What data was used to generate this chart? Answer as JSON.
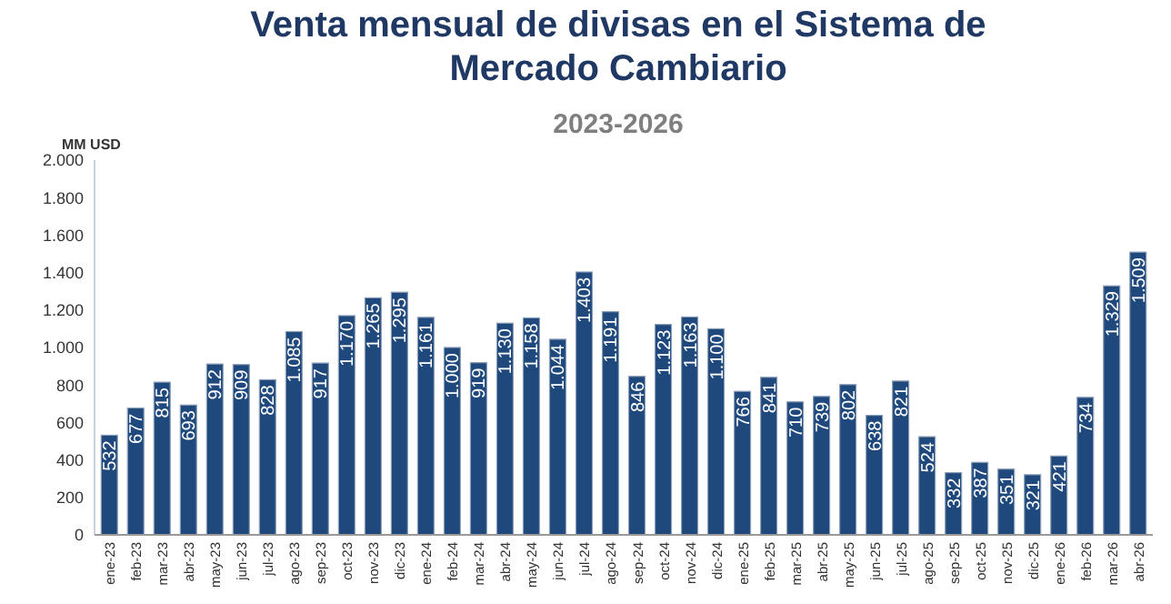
{
  "chart_data": {
    "type": "bar",
    "title": "Venta mensual de divisas en el Sistema de Mercado Cambiario",
    "subtitle": "2023-2026",
    "ylabel": "MM USD",
    "categories": [
      "ene-23",
      "feb-23",
      "mar-23",
      "abr-23",
      "may-23",
      "jun-23",
      "jul-23",
      "ago-23",
      "sep-23",
      "oct-23",
      "nov-23",
      "dic-23",
      "ene-24",
      "feb-24",
      "mar-24",
      "abr-24",
      "may-24",
      "jun-24",
      "jul-24",
      "ago-24",
      "sep-24",
      "oct-24",
      "nov-24",
      "dic-24",
      "ene-25",
      "feb-25",
      "mar-25",
      "abr-25",
      "may-25",
      "jun-25",
      "jul-25",
      "ago-25",
      "sep-25",
      "oct-25",
      "nov-25",
      "dic-25",
      "ene-26",
      "feb-26",
      "mar-26",
      "abr-26"
    ],
    "values": [
      532,
      677,
      815,
      693,
      912,
      909,
      828,
      1085,
      917,
      1170,
      1265,
      1295,
      1161,
      1000,
      919,
      1130,
      1158,
      1044,
      1403,
      1191,
      846,
      1123,
      1163,
      1100,
      766,
      841,
      710,
      739,
      802,
      638,
      821,
      524,
      332,
      387,
      351,
      321,
      421,
      734,
      1329,
      1509
    ],
    "value_labels": [
      "532",
      "677",
      "815",
      "693",
      "912",
      "909",
      "828",
      "1.085",
      "917",
      "1.170",
      "1.265",
      "1.295",
      "1.161",
      "1.000",
      "919",
      "1.130",
      "1.158",
      "1.044",
      "1.403",
      "1.191",
      "846",
      "1.123",
      "1.163",
      "1.100",
      "766",
      "841",
      "710",
      "739",
      "802",
      "638",
      "821",
      "524",
      "332",
      "387",
      "351",
      "321",
      "421",
      "734",
      "1.329",
      "1.509"
    ],
    "color": "#1f497d",
    "ylim": [
      0,
      2000
    ],
    "yticks": [
      {
        "value": 0,
        "label": "0"
      },
      {
        "value": 200,
        "label": "200"
      },
      {
        "value": 400,
        "label": "400"
      },
      {
        "value": 600,
        "label": "600"
      },
      {
        "value": 800,
        "label": "800"
      },
      {
        "value": 1000,
        "label": "1.000"
      },
      {
        "value": 1200,
        "label": "1.200"
      },
      {
        "value": 1400,
        "label": "1.400"
      },
      {
        "value": 1600,
        "label": "1.600"
      },
      {
        "value": 1800,
        "label": "1.800"
      },
      {
        "value": 2000,
        "label": "2.000"
      }
    ],
    "grid": false
  }
}
